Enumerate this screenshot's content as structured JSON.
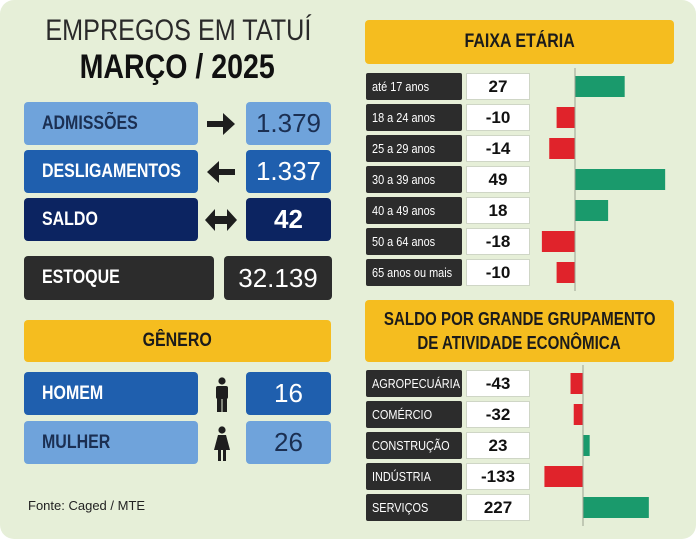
{
  "header": {
    "title_line1": "EMPREGOS EM TATUÍ",
    "title_line2": "MARÇO / 2025"
  },
  "summary": [
    {
      "label": "ADMISSÕES",
      "value": "1.379",
      "icon": "arrow-right-icon"
    },
    {
      "label": "DESLIGAMENTOS",
      "value": "1.337",
      "icon": "arrow-left-icon"
    },
    {
      "label": "SALDO",
      "value": "42",
      "icon": "arrow-left-right-icon"
    },
    {
      "label": "ESTOQUE",
      "value": "32.139"
    }
  ],
  "genero": {
    "title": "GÊNERO",
    "rows": [
      {
        "label": "HOMEM",
        "value": "16",
        "icon": "male-person-icon"
      },
      {
        "label": "MULHER",
        "value": "26",
        "icon": "female-person-icon"
      }
    ]
  },
  "source": "Fonte: Caged / MTE",
  "colors": {
    "positive": "#1a9a6c",
    "negative": "#e0232b",
    "accent": "#f5bd1f"
  },
  "chart_data": [
    {
      "type": "bar",
      "title": "FAIXA ETÁRIA",
      "categories": [
        "até 17 anos",
        "18 a 24 anos",
        "25 a 29 anos",
        "30 a 39 anos",
        "40 a 49 anos",
        "50 a 64 anos",
        "65 anos ou mais"
      ],
      "values": [
        27,
        -10,
        -14,
        49,
        18,
        -18,
        -10
      ]
    },
    {
      "type": "bar",
      "title_line1": "SALDO POR GRANDE GRUPAMENTO",
      "title_line2": "DE ATIVIDADE ECONÔMICA",
      "categories": [
        "AGROPECUÁRIA",
        "COMÉRCIO",
        "CONSTRUÇÃO",
        "INDÚSTRIA",
        "SERVIÇOS"
      ],
      "values": [
        -43,
        -32,
        23,
        -133,
        227
      ]
    }
  ]
}
